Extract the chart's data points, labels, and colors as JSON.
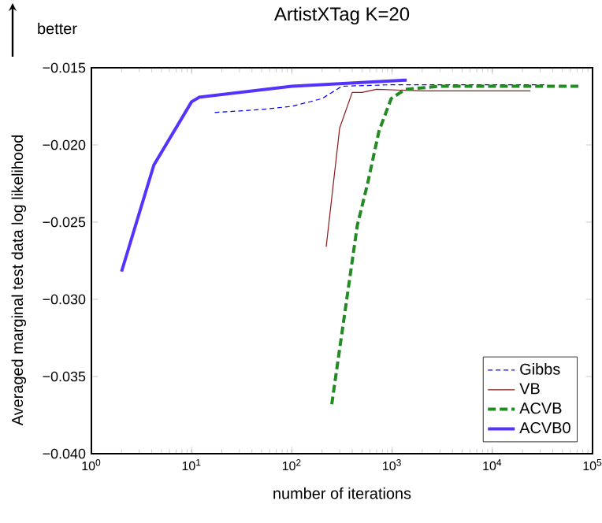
{
  "chart_data": {
    "type": "line",
    "title": "ArtistXTag K=20",
    "xlabel": "number of iterations",
    "ylabel": "Averaged marginal test data log likelihood",
    "annotations": [
      "better"
    ],
    "log": "x",
    "legend": "bottom right",
    "grid": false,
    "xlim": [
      1,
      100000
    ],
    "ylim": [
      -0.04,
      -0.015
    ],
    "xticks": [
      {
        "value": 1,
        "label": "10$^{0}$"
      },
      {
        "value": 10,
        "label": "10$^{1}$"
      },
      {
        "value": 100,
        "label": "10$^{2}$"
      },
      {
        "value": 1000,
        "label": "10$^{3}$"
      },
      {
        "value": 10000,
        "label": "10$^{4}$"
      },
      {
        "value": 100000,
        "label": "10$^{5}$"
      }
    ],
    "yticks": [
      {
        "value": -0.04,
        "label": "−0.040"
      },
      {
        "value": -0.035,
        "label": "−0.035"
      },
      {
        "value": -0.03,
        "label": "−0.030"
      },
      {
        "value": -0.025,
        "label": "−0.025"
      },
      {
        "value": -0.02,
        "label": "−0.020"
      },
      {
        "value": -0.015,
        "label": "−0.015"
      }
    ],
    "series": [
      {
        "name": "Gibbs",
        "color": "#0000ff",
        "line_style": "dashed",
        "x": [
          17,
          30,
          50,
          100,
          200,
          316,
          1000,
          5000,
          33000
        ],
        "values": [
          -0.0179,
          -0.0178,
          -0.0177,
          -0.0175,
          -0.017,
          -0.0162,
          -0.0161,
          -0.0161,
          -0.0161
        ]
      },
      {
        "name": "VB",
        "color": "#8b1a1a",
        "line_style": "solid",
        "x": [
          220,
          300,
          400,
          500,
          700,
          2000,
          24000
        ],
        "values": [
          -0.0266,
          -0.0189,
          -0.0166,
          -0.0166,
          -0.0164,
          -0.0165,
          -0.0165
        ]
      },
      {
        "name": "ACVB",
        "color": "#228b22",
        "line_style": "dashed",
        "x": [
          250,
          450,
          570,
          740,
          980,
          1350,
          3000,
          76000
        ],
        "values": [
          -0.0368,
          -0.0252,
          -0.0225,
          -0.0191,
          -0.017,
          -0.0164,
          -0.0162,
          -0.0162
        ]
      },
      {
        "name": "ACVB0",
        "color": "#5533ff",
        "line_style": "solid",
        "x": [
          2,
          4.2,
          10,
          12,
          100,
          1400
        ],
        "values": [
          -0.0282,
          -0.0213,
          -0.0172,
          -0.0169,
          -0.0162,
          -0.0158
        ]
      }
    ]
  }
}
